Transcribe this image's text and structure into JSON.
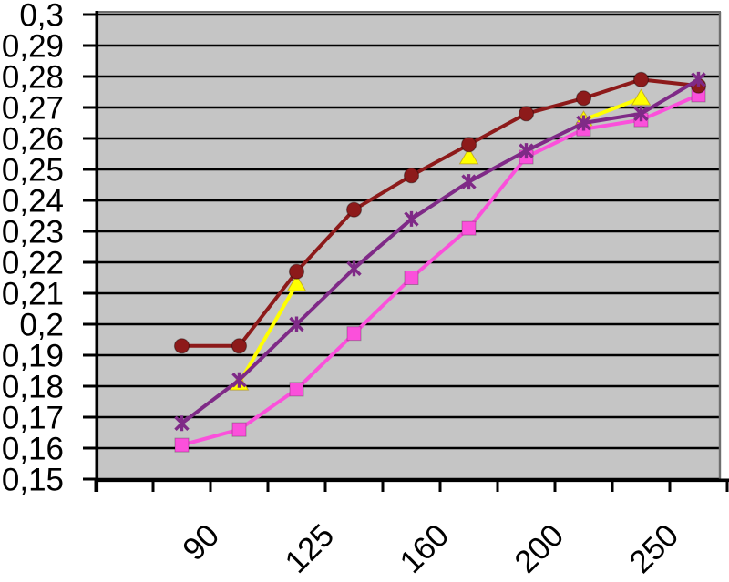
{
  "chart_data": {
    "type": "line",
    "title": "",
    "xlabel": "",
    "ylabel": "",
    "decimal_separator": ",",
    "grid": true,
    "legend": "none",
    "colors": {
      "plot_background": "#c5c5c5",
      "gridline": "#000000",
      "axis": "#000000",
      "plot_border": "#6e6e6e",
      "label_text": "#000000"
    },
    "y_axis": {
      "min": 0.15,
      "max": 0.3,
      "step": 0.01,
      "tick_labels": [
        "0,3",
        "0,29",
        "0,28",
        "0,27",
        "0,26",
        "0,25",
        "0,24",
        "0,23",
        "0,22",
        "0,21",
        "0,2",
        "0,19",
        "0,18",
        "0,17",
        "0,16",
        "0,15"
      ]
    },
    "x_axis": {
      "num_categories": 11,
      "labels": [
        "90",
        "125",
        "160",
        "200",
        "250"
      ],
      "label_category_indices": [
        3,
        5,
        7,
        9,
        11
      ]
    },
    "series": [
      {
        "name": "yellow-triangles",
        "marker": "triangle",
        "color": "#ffff00",
        "values": [
          null,
          null,
          0.181,
          0.213,
          null,
          null,
          0.254,
          null,
          0.266,
          0.273,
          null
        ]
      },
      {
        "name": "magenta-squares",
        "marker": "square",
        "color": "#fb50db",
        "values": [
          null,
          0.161,
          0.166,
          0.179,
          0.197,
          0.215,
          0.231,
          0.254,
          0.263,
          0.266,
          0.274
        ]
      },
      {
        "name": "dark-red-circles",
        "marker": "circle",
        "color": "#8d1a1a",
        "values": [
          null,
          0.193,
          0.193,
          0.217,
          0.237,
          0.248,
          0.258,
          0.268,
          0.273,
          0.279,
          0.277
        ]
      },
      {
        "name": "purple-stars",
        "marker": "star",
        "color": "#7f2a87",
        "values": [
          null,
          0.168,
          0.182,
          0.2,
          0.218,
          0.234,
          0.246,
          0.256,
          0.265,
          0.268,
          0.279
        ]
      }
    ]
  }
}
